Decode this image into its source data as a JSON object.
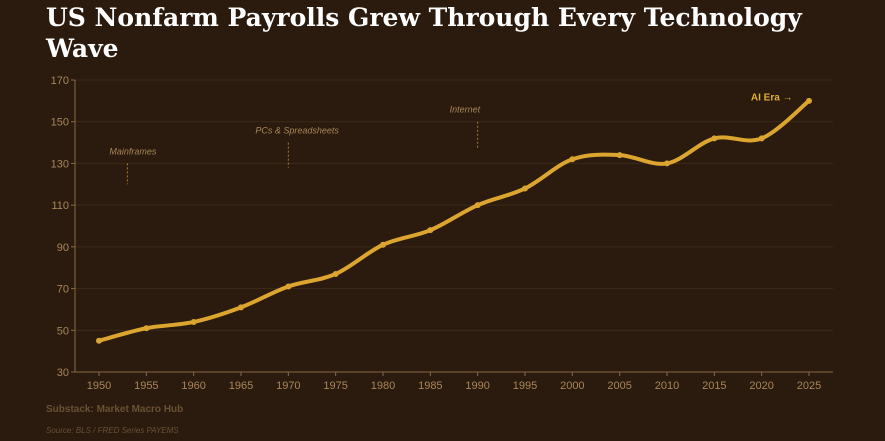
{
  "chart_data": {
    "type": "line",
    "title": "US Nonfarm Payrolls Grew Through Every Technology Wave",
    "xlabel": "",
    "ylabel": "",
    "x": [
      1950,
      1955,
      1960,
      1965,
      1970,
      1975,
      1980,
      1985,
      1990,
      1995,
      2000,
      2005,
      2010,
      2015,
      2020,
      2025
    ],
    "xlim": [
      1950,
      2025
    ],
    "ylim": [
      30,
      170
    ],
    "yticks": [
      30,
      50,
      70,
      90,
      110,
      130,
      150,
      170
    ],
    "xticks": [
      1950,
      1955,
      1960,
      1965,
      1970,
      1975,
      1980,
      1985,
      1990,
      1995,
      2000,
      2005,
      2010,
      2015,
      2020,
      2025
    ],
    "series": [
      {
        "name": "Nonfarm Payrolls",
        "values": [
          45,
          51,
          54,
          61,
          71,
          77,
          91,
          98,
          110,
          118,
          132,
          134,
          130,
          142,
          142,
          160
        ],
        "color": "#dba52f"
      }
    ],
    "annotations": [
      {
        "label": "Mainframes",
        "x": 1953,
        "y_top": 130,
        "y_bottom": 120,
        "style": "italic"
      },
      {
        "label": "PCs & Spreadsheets",
        "x": 1970,
        "y_top": 140,
        "y_bottom": 128,
        "style": "italic"
      },
      {
        "label": "Internet",
        "x": 1990,
        "y_top": 150,
        "y_bottom": 137,
        "style": "italic"
      },
      {
        "label": "AI Era →",
        "x": 2022,
        "y": 162,
        "style": "bold"
      }
    ],
    "grid": true
  },
  "footer": {
    "credit": "Substack: Market Macro Hub",
    "source": "Source: BLS / FRED Series PAYEMS"
  },
  "colors": {
    "background": "#2a1b0e",
    "line": "#dba52f",
    "grid": "#3c2a18",
    "axis": "#8a6a45",
    "text_muted": "#a9855a"
  }
}
